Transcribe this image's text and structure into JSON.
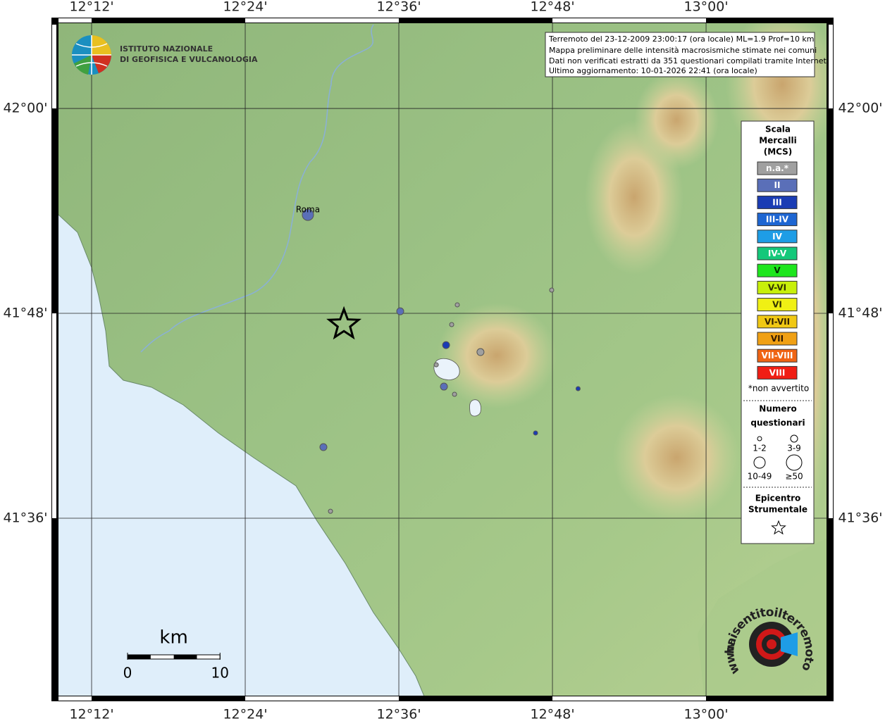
{
  "map": {
    "info": [
      "Terremoto del 23-12-2009 23:00:17 (ora locale) ML=1.9 Prof=10 km",
      "Mappa preliminare delle intensità macrosismiche stimate nei comuni",
      "Dati non verificati estratti da 351 questionari compilati tramite Internet.",
      "Ultimo aggiornamento: 10-01-2026 22:41 (ora locale)"
    ],
    "institute": [
      "ISTITUTO NAZIONALE",
      "DI GEOFISICA E VULCANOLOGIA"
    ],
    "site_logo": {
      "domain": "haisentitoilterremoto.it",
      "prefix": "www."
    },
    "lon_range": [
      12.1477,
      13.166
    ],
    "lat_range": [
      41.4213,
      42.0887
    ],
    "lon_ticks": [
      {
        "value": 12.2,
        "label": "12°12'"
      },
      {
        "value": 12.4,
        "label": "12°24'"
      },
      {
        "value": 12.6,
        "label": "12°36'"
      },
      {
        "value": 12.8,
        "label": "12°48'"
      },
      {
        "value": 13.0,
        "label": "13°00'"
      }
    ],
    "lat_ticks": [
      {
        "value": 42.0,
        "label": "42°00'"
      },
      {
        "value": 41.8,
        "label": "41°48'"
      },
      {
        "value": 41.6,
        "label": "41°36'"
      }
    ],
    "legend": {
      "title": [
        "Scala",
        "Mercalli",
        "(MCS)"
      ],
      "classes": [
        {
          "label": "n.a.*",
          "color": "#a0a0a0",
          "text_color": "#ffffff"
        },
        {
          "label": "II",
          "color": "#5a6fb8",
          "text_color": "#ffffff"
        },
        {
          "label": "III",
          "color": "#1a3cb4",
          "text_color": "#ffffff"
        },
        {
          "label": "III-IV",
          "color": "#1e66d2",
          "text_color": "#ffffff"
        },
        {
          "label": "IV",
          "color": "#1e9de6",
          "text_color": "#ffffff"
        },
        {
          "label": "IV-V",
          "color": "#14c87a",
          "text_color": "#ffffff"
        },
        {
          "label": "V",
          "color": "#1ee61e",
          "text_color": "#003300"
        },
        {
          "label": "V-VI",
          "color": "#c8f00a",
          "text_color": "#333300"
        },
        {
          "label": "VI",
          "color": "#f0f014",
          "text_color": "#333300"
        },
        {
          "label": "VI-VII",
          "color": "#f0c814",
          "text_color": "#332200"
        },
        {
          "label": "VII",
          "color": "#f0a014",
          "text_color": "#331a00"
        },
        {
          "label": "VII-VIII",
          "color": "#f06414",
          "text_color": "#ffffff"
        },
        {
          "label": "VIII",
          "color": "#f01e14",
          "text_color": "#ffffff"
        }
      ],
      "note": "*non avvertito",
      "size_title": [
        "Numero",
        "questionari"
      ],
      "size_classes": [
        "1-2",
        "3-9",
        "10-49",
        "≥50"
      ],
      "epicenter_title": [
        "Epicentro",
        "Strumentale"
      ]
    },
    "epicenter": {
      "lon": 12.5285,
      "lat": 41.789
    },
    "points": [
      {
        "name": "Roma",
        "lon": 12.4816,
        "lat": 41.8962,
        "intensity": "II",
        "size": "10-49"
      },
      {
        "lon": 12.6018,
        "lat": 41.802,
        "intensity": "II",
        "size": "3-9"
      },
      {
        "lon": 12.6761,
        "lat": 41.8083,
        "intensity": "n.a.*",
        "size": "1-2"
      },
      {
        "lon": 12.6688,
        "lat": 41.789,
        "intensity": "n.a.*",
        "size": "1-2"
      },
      {
        "lon": 12.6615,
        "lat": 41.769,
        "intensity": "III",
        "size": "3-9"
      },
      {
        "lon": 12.7063,
        "lat": 41.7622,
        "intensity": "n.a.*",
        "size": "3-9"
      },
      {
        "lon": 12.6487,
        "lat": 41.7498,
        "intensity": "n.a.*",
        "size": "1-2"
      },
      {
        "lon": 12.6587,
        "lat": 41.7285,
        "intensity": "II",
        "size": "3-9"
      },
      {
        "lon": 12.6725,
        "lat": 41.721,
        "intensity": "n.a.*",
        "size": "1-2"
      },
      {
        "lon": 12.799,
        "lat": 41.8227,
        "intensity": "n.a.*",
        "size": "1-2"
      },
      {
        "lon": 12.8334,
        "lat": 41.7265,
        "intensity": "III",
        "size": "1-2"
      },
      {
        "lon": 12.778,
        "lat": 41.6832,
        "intensity": "III",
        "size": "1-2"
      },
      {
        "lon": 12.5018,
        "lat": 41.6694,
        "intensity": "II",
        "size": "3-9"
      },
      {
        "lon": 12.511,
        "lat": 41.6068,
        "intensity": "n.a.*",
        "size": "1-2"
      }
    ],
    "scale_bar": {
      "unit": "km",
      "ticks": [
        0,
        10
      ]
    }
  }
}
